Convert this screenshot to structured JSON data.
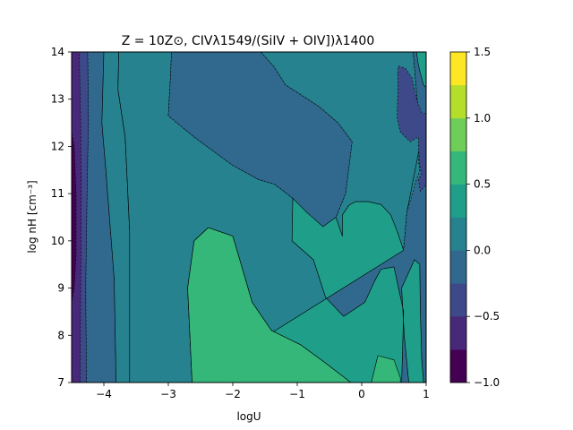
{
  "chart_data": {
    "type": "heatmap",
    "title": "Z = 10Z⊙, CIVλ1549/(SiIV + OIV])λ1400",
    "xlabel": "logU",
    "ylabel": "log nH [cm⁻³]",
    "xlim": [
      -4.5,
      1
    ],
    "ylim": [
      7,
      14
    ],
    "x_ticks": [
      {
        "value": -4,
        "label": "−4"
      },
      {
        "value": -3,
        "label": "−3"
      },
      {
        "value": -2,
        "label": "−2"
      },
      {
        "value": -1,
        "label": "−1"
      },
      {
        "value": 0,
        "label": "0"
      },
      {
        "value": 1,
        "label": "1"
      }
    ],
    "y_ticks": [
      {
        "value": 7,
        "label": "7"
      },
      {
        "value": 8,
        "label": "8"
      },
      {
        "value": 9,
        "label": "9"
      },
      {
        "value": 10,
        "label": "10"
      },
      {
        "value": 11,
        "label": "11"
      },
      {
        "value": 12,
        "label": "12"
      },
      {
        "value": 13,
        "label": "13"
      },
      {
        "value": 14,
        "label": "14"
      }
    ],
    "levels": [
      -1.0,
      -0.75,
      -0.5,
      -0.25,
      0.0,
      0.25,
      0.5,
      0.75,
      1.0,
      1.25,
      1.5
    ],
    "level_colors": [
      "#440154",
      "#482878",
      "#3e4989",
      "#31688e",
      "#26828e",
      "#1f9e89",
      "#35b779",
      "#6ece58",
      "#b5de2b",
      "#fde725"
    ],
    "colorbar_ticks": [
      {
        "value": -1.0,
        "label": "−1.0"
      },
      {
        "value": -0.5,
        "label": "−0.5"
      },
      {
        "value": 0.0,
        "label": "0.0"
      },
      {
        "value": 0.5,
        "label": "0.5"
      },
      {
        "value": 1.0,
        "label": "1.0"
      },
      {
        "value": 1.5,
        "label": "1.5"
      }
    ],
    "regions": [
      {
        "level_index": 2,
        "label": "-0.5 to -0.25",
        "points": [
          [
            -4.5,
            7
          ],
          [
            -4.5,
            14
          ],
          [
            -4.25,
            14
          ],
          [
            -4.24,
            12.5
          ],
          [
            -4.26,
            11
          ],
          [
            -4.28,
            9
          ],
          [
            -4.27,
            7
          ]
        ]
      },
      {
        "level_index": 1,
        "label": "-0.75 to -0.5",
        "points": [
          [
            -4.5,
            7
          ],
          [
            -4.5,
            14
          ],
          [
            -4.38,
            14
          ],
          [
            -4.36,
            12.5
          ],
          [
            -4.35,
            11
          ],
          [
            -4.36,
            9
          ],
          [
            -4.37,
            7
          ]
        ]
      },
      {
        "level_index": 0,
        "label": "-1.0 to -0.75",
        "points": [
          [
            -4.5,
            8.7
          ],
          [
            -4.5,
            12.3
          ],
          [
            -4.46,
            12.0
          ],
          [
            -4.43,
            11.0
          ],
          [
            -4.43,
            9.7
          ],
          [
            -4.46,
            9.0
          ]
        ]
      },
      {
        "level_index": 3,
        "label": "-0.25 to 0.0 (left)",
        "points": [
          [
            -4.27,
            7
          ],
          [
            -4.28,
            9
          ],
          [
            -4.26,
            11
          ],
          [
            -4.24,
            12.5
          ],
          [
            -4.25,
            14
          ],
          [
            -4.0,
            14
          ],
          [
            -4.03,
            12.5
          ],
          [
            -3.97,
            11.5
          ],
          [
            -3.84,
            9.2
          ],
          [
            -3.81,
            7
          ]
        ]
      },
      {
        "level_index": 4,
        "label": "0.0 to 0.25 (left)",
        "points": [
          [
            -3.81,
            7
          ],
          [
            -3.84,
            9.2
          ],
          [
            -3.97,
            11.5
          ],
          [
            -4.03,
            12.5
          ],
          [
            -4.0,
            14
          ],
          [
            -3.77,
            14
          ],
          [
            -3.78,
            13.2
          ],
          [
            -3.67,
            12.2
          ],
          [
            -3.6,
            10.2
          ],
          [
            -3.6,
            7
          ]
        ]
      },
      {
        "level_index": 4,
        "label": "0.0 to 0.25 (main)",
        "points": [
          [
            -2.95,
            14
          ],
          [
            -2.97,
            13.4
          ],
          [
            -3.0,
            12.65
          ],
          [
            -2.6,
            12.2
          ],
          [
            -2.0,
            11.6
          ],
          [
            -1.6,
            11.3
          ],
          [
            -1.35,
            11.2
          ],
          [
            -1.07,
            10.9
          ],
          [
            -0.85,
            10.6
          ],
          [
            -0.6,
            10.3
          ],
          [
            -0.4,
            10.5
          ],
          [
            -0.25,
            11.0
          ],
          [
            -0.15,
            12.1
          ],
          [
            -0.37,
            12.5
          ],
          [
            -0.67,
            12.85
          ],
          [
            -1.18,
            13.3
          ],
          [
            -1.37,
            13.7
          ],
          [
            -1.57,
            14
          ],
          [
            0.8,
            14
          ],
          [
            0.86,
            13.0
          ],
          [
            0.91,
            12.5
          ],
          [
            0.9,
            12.0
          ],
          [
            0.7,
            10.6
          ],
          [
            0.65,
            9.8
          ],
          [
            0.62,
            9.0
          ],
          [
            0.66,
            8.0
          ],
          [
            0.73,
            7
          ],
          [
            -0.17,
            7
          ],
          [
            -0.55,
            7.4
          ],
          [
            -0.95,
            7.8
          ],
          [
            -1.4,
            8.1
          ],
          [
            -1.7,
            8.7
          ],
          [
            -2.0,
            10.1
          ],
          [
            -2.38,
            10.28
          ],
          [
            -2.6,
            10.0
          ],
          [
            -2.7,
            9.0
          ],
          [
            -2.63,
            7
          ],
          [
            -3.6,
            7
          ],
          [
            -3.6,
            10.2
          ],
          [
            -3.67,
            12.2
          ],
          [
            -3.78,
            13.2
          ],
          [
            -3.77,
            14
          ]
        ]
      },
      {
        "level_index": 3,
        "label": "-0.25 to 0.0 (main)",
        "points": [
          [
            -2.95,
            14
          ],
          [
            -1.57,
            14
          ],
          [
            -1.37,
            13.7
          ],
          [
            -1.18,
            13.3
          ],
          [
            -0.67,
            12.85
          ],
          [
            -0.37,
            12.5
          ],
          [
            -0.15,
            12.1
          ],
          [
            -0.25,
            11.0
          ],
          [
            -0.4,
            10.5
          ],
          [
            -0.3,
            10.1
          ],
          [
            -0.3,
            10.55
          ],
          [
            -0.2,
            10.75
          ],
          [
            -0.1,
            10.83
          ],
          [
            0.1,
            10.83
          ],
          [
            0.3,
            10.77
          ],
          [
            0.45,
            10.55
          ],
          [
            0.55,
            10.2
          ],
          [
            0.65,
            9.8
          ],
          [
            0.7,
            10.6
          ],
          [
            0.85,
            11.3
          ],
          [
            0.9,
            11.5
          ],
          [
            0.88,
            11.7
          ],
          [
            0.9,
            12.0
          ],
          [
            0.91,
            12.5
          ],
          [
            0.86,
            13.0
          ],
          [
            0.8,
            14
          ],
          [
            0.87,
            14
          ],
          [
            0.92,
            13.6
          ],
          [
            1.0,
            13.7
          ],
          [
            1.0,
            7
          ],
          [
            0.96,
            7
          ],
          [
            0.93,
            7.5
          ],
          [
            0.91,
            8.5
          ],
          [
            0.9,
            9.5
          ],
          [
            0.82,
            9.6
          ],
          [
            0.72,
            9.3
          ],
          [
            0.62,
            9.0
          ],
          [
            0.66,
            8.0
          ],
          [
            0.73,
            7
          ],
          [
            0.62,
            7
          ],
          [
            0.65,
            8.5
          ],
          [
            0.5,
            9.45
          ],
          [
            0.3,
            9.4
          ],
          [
            0.2,
            9.15
          ],
          [
            0.05,
            8.7
          ],
          [
            -0.28,
            8.4
          ],
          [
            -0.56,
            8.8
          ],
          [
            -0.75,
            9.6
          ],
          [
            -1.08,
            10.0
          ],
          [
            -1.07,
            10.9
          ],
          [
            -1.35,
            11.2
          ],
          [
            -1.6,
            11.3
          ],
          [
            -2.0,
            11.6
          ],
          [
            -2.6,
            12.2
          ],
          [
            -3.0,
            12.65
          ],
          [
            -2.97,
            13.4
          ]
        ]
      },
      {
        "level_index": 2,
        "label": "-0.5 to -0.25 (right)",
        "points": [
          [
            0.56,
            13.55
          ],
          [
            0.57,
            13.7
          ],
          [
            0.68,
            13.65
          ],
          [
            0.78,
            13.45
          ],
          [
            0.85,
            13.0
          ],
          [
            0.93,
            12.7
          ],
          [
            1.0,
            12.7
          ],
          [
            1.0,
            11.2
          ],
          [
            0.91,
            11.05
          ],
          [
            0.88,
            11.3
          ],
          [
            0.93,
            11.4
          ],
          [
            0.9,
            11.6
          ],
          [
            0.88,
            12.0
          ],
          [
            0.88,
            12.2
          ],
          [
            0.75,
            12.1
          ],
          [
            0.6,
            12.3
          ],
          [
            0.55,
            12.6
          ],
          [
            0.56,
            13.2
          ]
        ]
      },
      {
        "level_index": 5,
        "label": "0.25 to 0.5 (top right)",
        "points": [
          [
            0.85,
            14
          ],
          [
            0.87,
            13.8
          ],
          [
            0.9,
            13.6
          ],
          [
            0.96,
            13.3
          ],
          [
            1.0,
            13.25
          ],
          [
            1.0,
            14
          ]
        ]
      },
      {
        "level_index": 5,
        "label": "0.25 to 0.5",
        "points": [
          [
            -2.63,
            7
          ],
          [
            -2.7,
            9.0
          ],
          [
            -2.6,
            10.0
          ],
          [
            -2.38,
            10.28
          ],
          [
            -2.0,
            10.1
          ],
          [
            -1.7,
            8.7
          ],
          [
            -1.4,
            8.1
          ],
          [
            -0.95,
            7.8
          ],
          [
            -0.55,
            7.4
          ],
          [
            -0.17,
            7
          ],
          [
            0.73,
            7
          ],
          [
            0.66,
            8.0
          ],
          [
            0.62,
            9.0
          ],
          [
            0.72,
            9.3
          ],
          [
            0.82,
            9.6
          ],
          [
            0.9,
            9.5
          ],
          [
            0.91,
            8.5
          ],
          [
            0.93,
            7.5
          ],
          [
            0.96,
            7
          ],
          [
            0.62,
            7
          ],
          [
            0.65,
            8.5
          ],
          [
            0.5,
            9.45
          ],
          [
            0.3,
            9.4
          ],
          [
            0.2,
            9.15
          ],
          [
            0.05,
            8.7
          ],
          [
            -0.28,
            8.4
          ],
          [
            -0.56,
            8.8
          ],
          [
            -0.75,
            9.6
          ],
          [
            -1.08,
            10.0
          ],
          [
            -1.07,
            10.9
          ],
          [
            -0.85,
            10.6
          ],
          [
            -0.6,
            10.3
          ],
          [
            -0.4,
            10.5
          ],
          [
            -0.3,
            10.1
          ],
          [
            -0.3,
            10.55
          ],
          [
            -0.2,
            10.75
          ],
          [
            -0.1,
            10.83
          ],
          [
            0.1,
            10.83
          ],
          [
            0.3,
            10.77
          ],
          [
            0.45,
            10.55
          ],
          [
            0.55,
            10.2
          ],
          [
            0.65,
            9.8
          ]
        ]
      },
      {
        "level_index": 6,
        "label": "0.5 to 0.75 (center)",
        "points": [
          [
            -2.63,
            7
          ],
          [
            -2.7,
            9.0
          ],
          [
            -2.6,
            10.0
          ],
          [
            -2.38,
            10.28
          ],
          [
            -2.0,
            10.1
          ],
          [
            -1.7,
            8.7
          ],
          [
            -1.4,
            8.1
          ],
          [
            -0.95,
            7.8
          ],
          [
            -0.55,
            7.4
          ],
          [
            -0.17,
            7
          ]
        ]
      },
      {
        "level_index": 6,
        "label": "0.5 to 0.75 (right)",
        "points": [
          [
            0.15,
            7
          ],
          [
            0.25,
            7.57
          ],
          [
            0.5,
            7.48
          ],
          [
            0.6,
            7.1
          ],
          [
            0.6,
            7
          ]
        ]
      }
    ]
  }
}
